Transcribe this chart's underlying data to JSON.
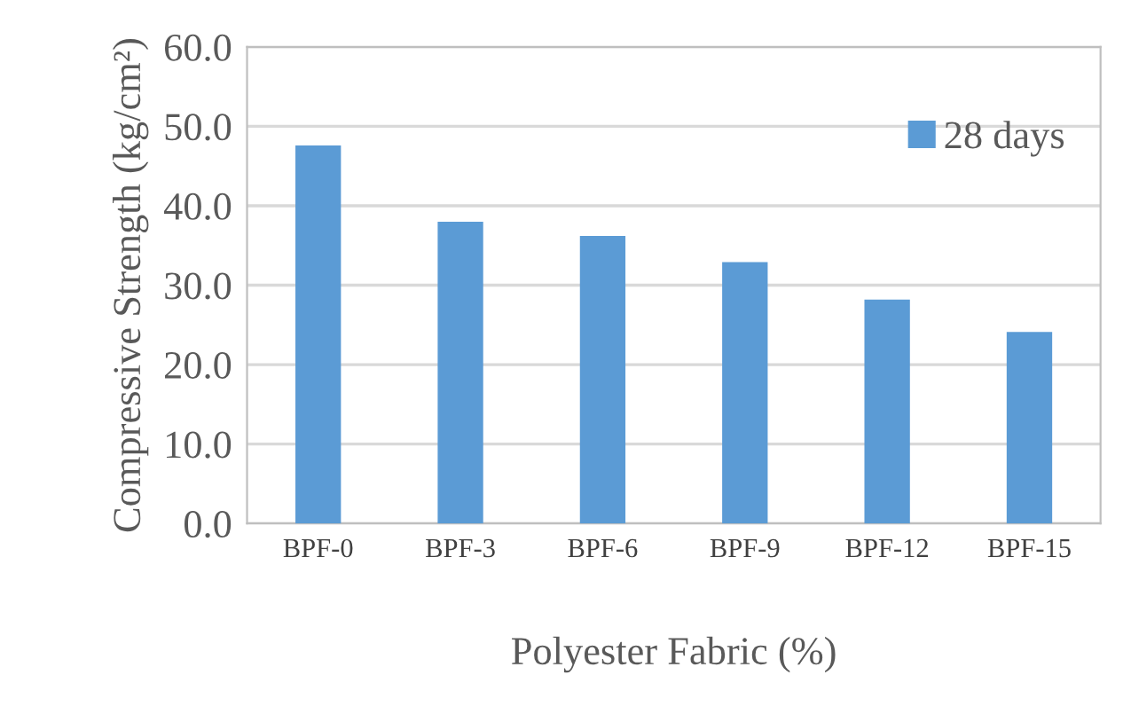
{
  "chart_data": {
    "type": "bar",
    "xlabel": "Polyester Fabric (%)",
    "ylabel": "Compressive Strength (kg/cm²)",
    "categories": [
      "BPF-0",
      "BPF-3",
      "BPF-6",
      "BPF-9",
      "BPF-12",
      "BPF-15"
    ],
    "series": [
      {
        "name": "28 days",
        "color": "#5b9bd5",
        "values": [
          47.6,
          38.0,
          36.2,
          32.9,
          28.2,
          24.1
        ]
      }
    ],
    "ylim": [
      0,
      60
    ],
    "yticks": [
      {
        "value": 0,
        "label": "0.0"
      },
      {
        "value": 10,
        "label": "10.0"
      },
      {
        "value": 20,
        "label": "20.0"
      },
      {
        "value": 30,
        "label": "30.0"
      },
      {
        "value": 40,
        "label": "40.0"
      },
      {
        "value": 50,
        "label": "50.0"
      },
      {
        "value": 60,
        "label": "60.0"
      }
    ],
    "grid": "y",
    "legend": "top right"
  }
}
